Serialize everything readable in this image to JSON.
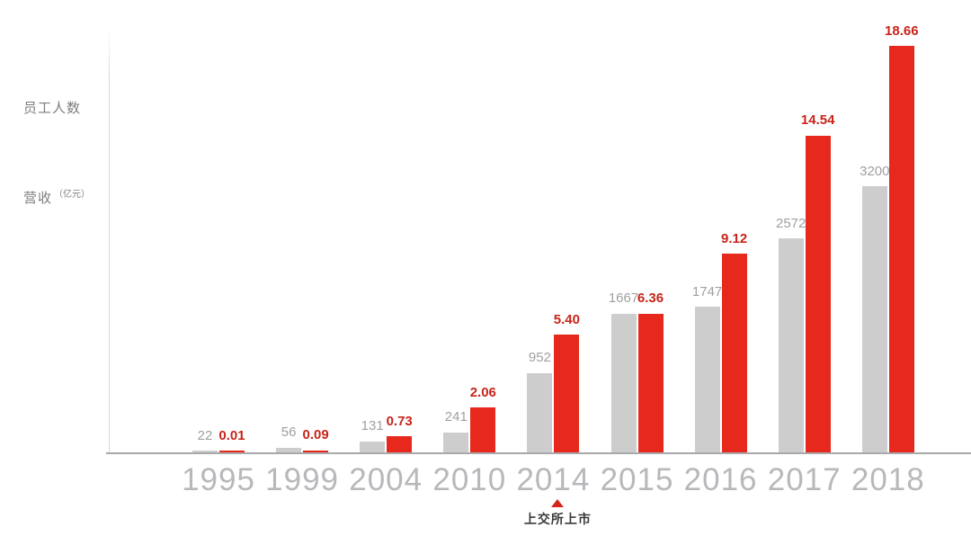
{
  "chart_data": {
    "type": "bar",
    "categories": [
      "1995",
      "1999",
      "2004",
      "2010",
      "2014",
      "2015",
      "2016",
      "2017",
      "2018"
    ],
    "series": [
      {
        "name": "员工人数",
        "values": [
          22,
          56,
          131,
          241,
          952,
          1667,
          1747,
          2572,
          3200
        ],
        "labels": [
          "22",
          "56",
          "131",
          "241",
          "952",
          "1667",
          "1747",
          "2572",
          "3200"
        ],
        "color": "#cdcdce",
        "label_color": "#a0a0a2"
      },
      {
        "name": "营收",
        "unit": "（亿元）",
        "values": [
          0.01,
          0.09,
          0.73,
          2.06,
          5.4,
          6.36,
          9.12,
          14.54,
          18.66
        ],
        "labels": [
          "0.01",
          "0.09",
          "0.73",
          "2.06",
          "5.40",
          "6.36",
          "9.12",
          "14.54",
          "18.66"
        ],
        "color": "#e6291c",
        "label_color": "#c7241a"
      }
    ],
    "annotation": {
      "category": "2014",
      "marker": "triangle-up",
      "marker_color": "#d4241c",
      "text": "上交所上市"
    },
    "legend_position": "top-left",
    "grid": false,
    "x_tick_color": "#b8b8bc",
    "axis_line_color": "#a9a9ac",
    "background": "#ffffff"
  }
}
